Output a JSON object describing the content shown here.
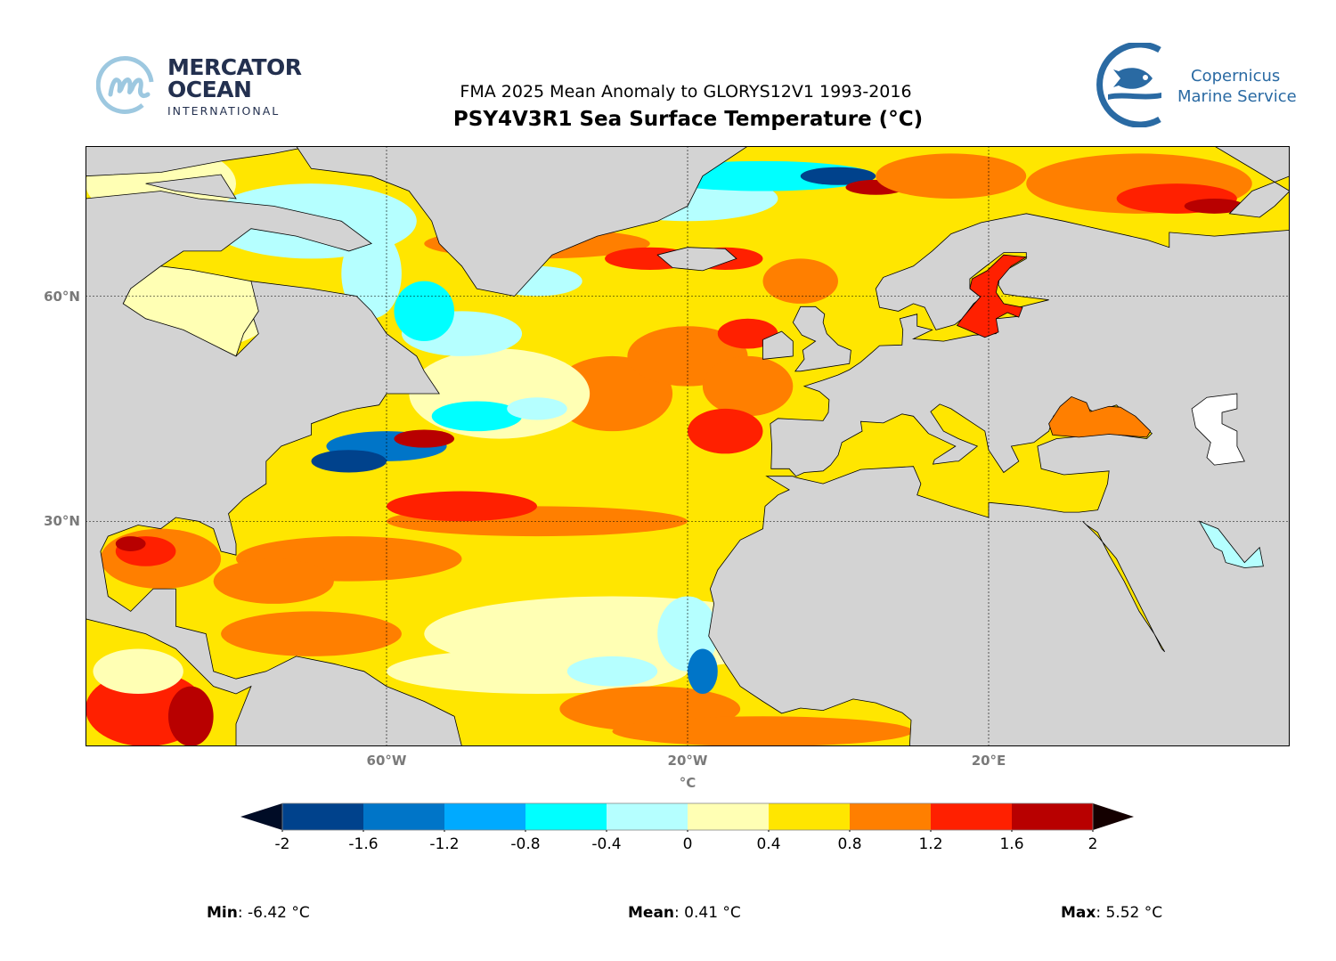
{
  "logos": {
    "mercator": {
      "line1": "MERCATOR",
      "line2": "OCEAN",
      "line3": "INTERNATIONAL",
      "color": "#23304f",
      "accent": "#9dc8e0"
    },
    "copernicus": {
      "line1": "Copernicus",
      "line2": "Marine Service",
      "color": "#2a6aa3"
    }
  },
  "header": {
    "subtitle": "FMA 2025 Mean Anomaly to GLORYS12V1 1993-2016",
    "title": "PSY4V3R1 Sea Surface Temperature (°C)"
  },
  "map": {
    "projection": "equirectangular",
    "lon_range": [
      -100,
      60
    ],
    "lat_range": [
      0,
      80
    ],
    "land_color": "#d3d3d3",
    "gridlines": true,
    "lon_ticks": [
      {
        "value": -60,
        "label": "60°W"
      },
      {
        "value": -20,
        "label": "20°W"
      },
      {
        "value": 20,
        "label": "20°E"
      }
    ],
    "lat_ticks": [
      {
        "value": 60,
        "label": "60°N"
      },
      {
        "value": 30,
        "label": "30°N"
      }
    ]
  },
  "colorbar": {
    "unit_label": "°C",
    "levels": [
      "-2",
      "-1.6",
      "-1.2",
      "-0.8",
      "-0.4",
      "0",
      "0.4",
      "0.8",
      "1.2",
      "1.6",
      "2"
    ],
    "colors": [
      "#00428c",
      "#0075c8",
      "#00aaff",
      "#00ffff",
      "#b5ffff",
      "#ffffb4",
      "#ffe600",
      "#ff7f00",
      "#ff2000",
      "#b80000"
    ],
    "under_color": "#000c26",
    "over_color": "#140000",
    "extend": "both"
  },
  "stats": {
    "min_label": "Min",
    "min_value": ": -6.42 °C",
    "mean_label": "Mean",
    "mean_value": ": 0.41 °C",
    "max_label": "Max",
    "max_value": ": 5.52 °C"
  }
}
